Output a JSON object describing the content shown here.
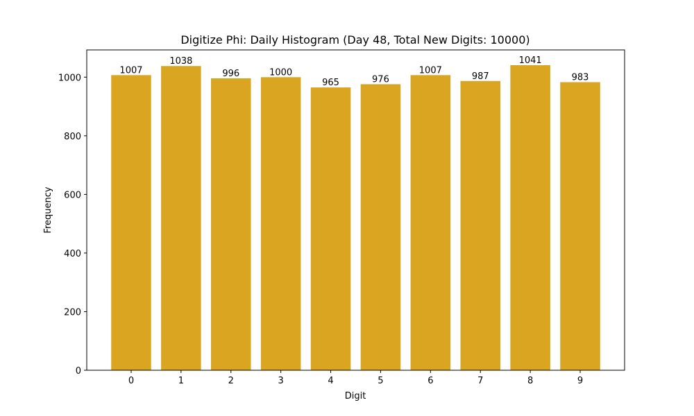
{
  "chart_data": {
    "type": "bar",
    "title": "Digitize Phi: Daily Histogram (Day 48, Total New Digits: 10000)",
    "xlabel": "Digit",
    "ylabel": "Frequency",
    "categories": [
      "0",
      "1",
      "2",
      "3",
      "4",
      "5",
      "6",
      "7",
      "8",
      "9"
    ],
    "values": [
      1007,
      1038,
      996,
      1000,
      965,
      976,
      1007,
      987,
      1041,
      983
    ],
    "bar_labels": [
      "1007",
      "1038",
      "996",
      "1000",
      "965",
      "976",
      "1007",
      "987",
      "1041",
      "983"
    ],
    "yticks": [
      0,
      200,
      400,
      600,
      800,
      1000
    ],
    "ylim": [
      0,
      1093
    ],
    "xlim": [
      -0.89,
      9.89
    ],
    "bar_color": "#DAA520",
    "grid": false,
    "legend": null
  }
}
